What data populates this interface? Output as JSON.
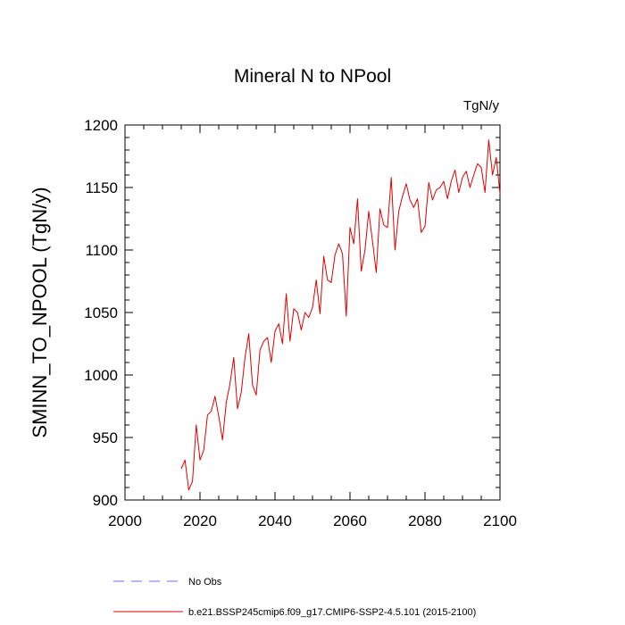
{
  "chart_data": {
    "type": "line",
    "title": "Mineral N to NPool",
    "units": "TgN/y",
    "xlabel": "",
    "ylabel": "SMINN_TO_NPOOL  (TgN/y)",
    "xlim": [
      2000,
      2100
    ],
    "ylim": [
      900,
      1200
    ],
    "xticks": [
      2000,
      2020,
      2040,
      2060,
      2080,
      2100
    ],
    "yticks": [
      900,
      950,
      1000,
      1050,
      1100,
      1150,
      1200
    ],
    "grid": false,
    "legend_position": "bottom",
    "series": [
      {
        "name": "b.e21.BSSP245cmip6.f09_g17.CMIP6-SSP2-4.5.101 (2015-2100)",
        "color": "#e00000",
        "style": "solid",
        "x": [
          2015,
          2016,
          2017,
          2018,
          2019,
          2020,
          2021,
          2022,
          2023,
          2024,
          2025,
          2026,
          2027,
          2028,
          2029,
          2030,
          2031,
          2032,
          2033,
          2034,
          2035,
          2036,
          2037,
          2038,
          2039,
          2040,
          2041,
          2042,
          2043,
          2044,
          2045,
          2046,
          2047,
          2048,
          2049,
          2050,
          2051,
          2052,
          2053,
          2054,
          2055,
          2056,
          2057,
          2058,
          2059,
          2060,
          2061,
          2062,
          2063,
          2064,
          2065,
          2066,
          2067,
          2068,
          2069,
          2070,
          2071,
          2072,
          2073,
          2074,
          2075,
          2076,
          2077,
          2078,
          2079,
          2080,
          2081,
          2082,
          2083,
          2084,
          2085,
          2086,
          2087,
          2088,
          2089,
          2090,
          2091,
          2092,
          2093,
          2094,
          2095,
          2096,
          2097,
          2098,
          2099,
          2100
        ],
        "values": [
          925,
          932,
          908,
          915,
          960,
          932,
          940,
          968,
          971,
          983,
          967,
          948,
          978,
          993,
          1014,
          973,
          986,
          1014,
          1033,
          992,
          984,
          1020,
          1027,
          1030,
          1010,
          1035,
          1041,
          1025,
          1065,
          1027,
          1053,
          1050,
          1036,
          1050,
          1046,
          1054,
          1076,
          1049,
          1095,
          1076,
          1074,
          1096,
          1105,
          1097,
          1047,
          1118,
          1105,
          1141,
          1083,
          1100,
          1131,
          1107,
          1082,
          1133,
          1120,
          1118,
          1158,
          1100,
          1131,
          1143,
          1153,
          1140,
          1134,
          1141,
          1114,
          1119,
          1154,
          1140,
          1148,
          1150,
          1155,
          1141,
          1155,
          1164,
          1146,
          1158,
          1163,
          1150,
          1160,
          1169,
          1166,
          1146,
          1188,
          1160,
          1174,
          1145
        ]
      },
      {
        "name": "No Obs",
        "color": "#6b6bff",
        "style": "dashed",
        "x": [],
        "values": []
      }
    ]
  }
}
